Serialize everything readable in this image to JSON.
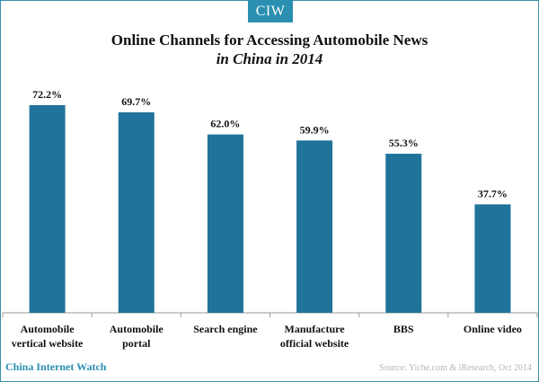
{
  "brand": {
    "logo_text": "CIW",
    "footer_name": "China Internet Watch"
  },
  "title": {
    "line1": "Online Channels for Accessing Automobile News",
    "line2": "in China in 2014"
  },
  "source": "Source: Yiche.com & iResearch, Oct 2014",
  "colors": {
    "bar": "#20739a",
    "axis": "#9a9a9a",
    "brand": "#2a8fb0"
  },
  "chart_data": {
    "type": "bar",
    "title": "Online Channels for Accessing Automobile News in China in 2014",
    "categories": [
      [
        "Automobile",
        "vertical website"
      ],
      [
        "Automobile",
        "portal"
      ],
      [
        "Search engine"
      ],
      [
        "Manufacture",
        "official website"
      ],
      [
        "BBS"
      ],
      [
        "Online video"
      ]
    ],
    "values": [
      72.2,
      69.7,
      62.0,
      59.9,
      55.3,
      37.7
    ],
    "value_labels": [
      "72.2%",
      "69.7%",
      "62.0%",
      "59.9%",
      "55.3%",
      "37.7%"
    ],
    "ylim": [
      0,
      100
    ],
    "grid": false,
    "legend": "none"
  }
}
